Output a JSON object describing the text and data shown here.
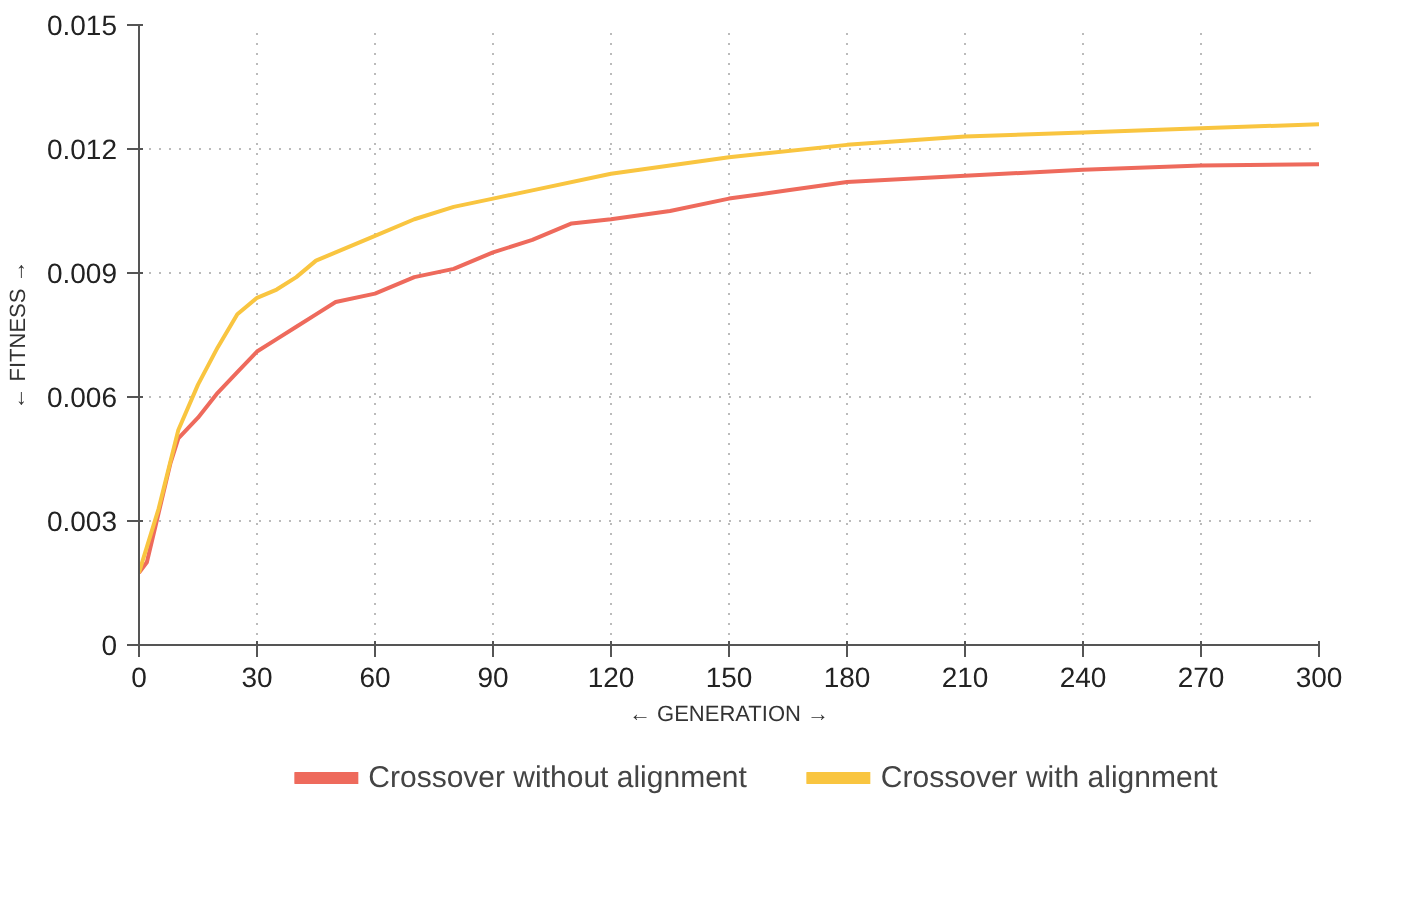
{
  "chart_data": {
    "type": "line",
    "xlabel": "← GENERATION →",
    "ylabel": "← FITNESS →",
    "xlim": [
      0,
      300
    ],
    "xticks": [
      0,
      30,
      60,
      90,
      120,
      150,
      180,
      210,
      240,
      270,
      300
    ],
    "ylim": [
      0,
      0.015
    ],
    "yticks": [
      0,
      0.003,
      0.006,
      0.009,
      0.012,
      0.015
    ],
    "grid": true,
    "legend": "bottom",
    "line_style": "solid",
    "series": [
      {
        "name": "Crossover without alignment",
        "color": "#ee6a5c",
        "x": [
          0,
          2,
          5,
          8,
          10,
          15,
          20,
          25,
          30,
          35,
          40,
          45,
          50,
          60,
          70,
          80,
          90,
          100,
          110,
          120,
          135,
          150,
          165,
          180,
          210,
          240,
          270,
          300
        ],
        "values": [
          0.00175,
          0.002,
          0.0032,
          0.0044,
          0.005,
          0.0055,
          0.0061,
          0.0066,
          0.0071,
          0.0074,
          0.0077,
          0.008,
          0.0083,
          0.0085,
          0.0089,
          0.0091,
          0.0095,
          0.0098,
          0.0102,
          0.0103,
          0.0105,
          0.0108,
          0.011,
          0.0112,
          0.01135,
          0.0115,
          0.0116,
          0.01163
        ]
      },
      {
        "name": "Crossover with alignment",
        "color": "#f9c540",
        "x": [
          0,
          5,
          10,
          15,
          20,
          25,
          30,
          35,
          40,
          45,
          50,
          60,
          70,
          80,
          90,
          100,
          120,
          150,
          180,
          210,
          240,
          270,
          300
        ],
        "values": [
          0.00175,
          0.0033,
          0.0052,
          0.0063,
          0.0072,
          0.008,
          0.0084,
          0.0086,
          0.0089,
          0.0093,
          0.0095,
          0.0099,
          0.0103,
          0.0106,
          0.0108,
          0.011,
          0.0114,
          0.0118,
          0.0121,
          0.0123,
          0.0124,
          0.0125,
          0.0126
        ]
      }
    ]
  }
}
